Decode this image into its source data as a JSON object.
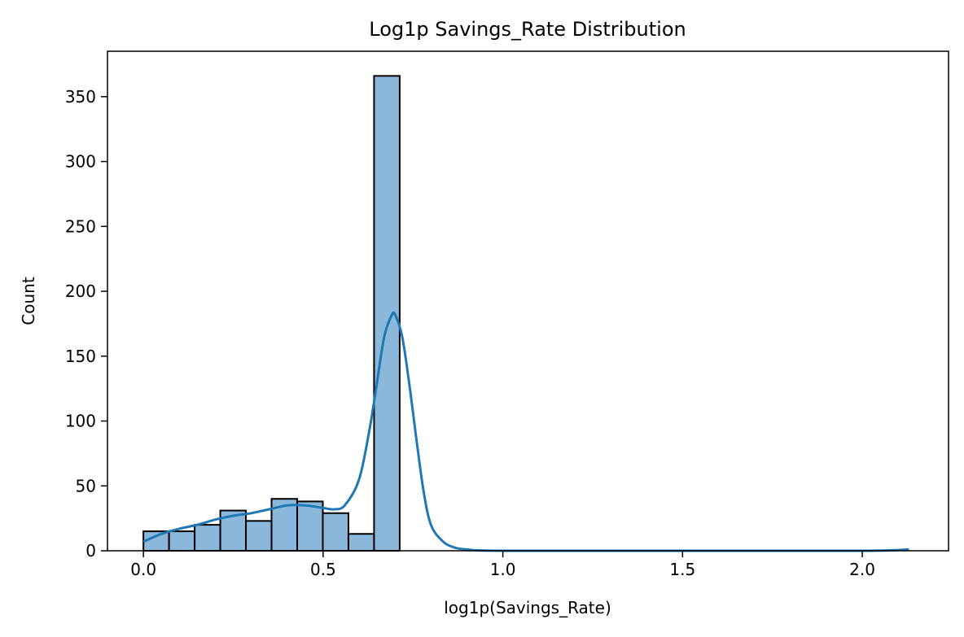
{
  "chart_data": {
    "type": "bar",
    "title": "Log1p Savings_Rate Distribution",
    "xlabel": "log1p(Savings_Rate)",
    "ylabel": "Count",
    "xlim": [
      -0.1,
      2.24
    ],
    "ylim": [
      0,
      385
    ],
    "x_ticks": [
      0.0,
      0.5,
      1.0,
      1.5,
      2.0
    ],
    "x_tick_labels": [
      "0.0",
      "0.5",
      "1.0",
      "1.5",
      "2.0"
    ],
    "y_ticks": [
      0,
      50,
      100,
      150,
      200,
      250,
      300,
      350
    ],
    "y_tick_labels": [
      "0",
      "50",
      "100",
      "150",
      "200",
      "250",
      "300",
      "350"
    ],
    "bin_edges": [
      0.0,
      0.0713,
      0.1426,
      0.2139,
      0.2852,
      0.3565,
      0.4278,
      0.4991,
      0.5704,
      0.6417,
      0.713
    ],
    "counts": [
      15,
      15,
      20,
      31,
      23,
      40,
      38,
      29,
      13,
      366
    ],
    "kde": {
      "x": [
        0.0,
        0.05,
        0.1,
        0.15,
        0.2,
        0.25,
        0.3,
        0.35,
        0.4,
        0.45,
        0.5,
        0.53,
        0.56,
        0.6,
        0.63,
        0.65,
        0.67,
        0.69,
        0.7,
        0.72,
        0.74,
        0.76,
        0.78,
        0.8,
        0.83,
        0.86,
        0.9,
        1.0,
        1.5,
        2.0,
        2.13
      ],
      "y": [
        7,
        13,
        17,
        20,
        24,
        27,
        29,
        32,
        35,
        35,
        33,
        32,
        35,
        55,
        95,
        130,
        165,
        181,
        182,
        165,
        128,
        85,
        45,
        20,
        8,
        3,
        1,
        0,
        0,
        0,
        1
      ]
    },
    "colors": {
      "bar_fill": "#8bb8da",
      "bar_edge": "#000000",
      "kde_line": "#1f77b4"
    },
    "grid": false
  }
}
